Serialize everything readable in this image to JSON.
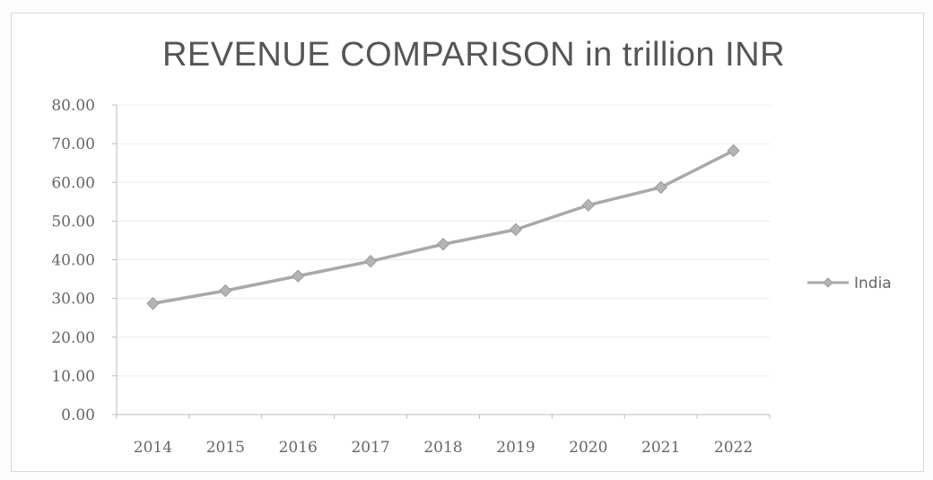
{
  "chart_data": {
    "type": "line",
    "title": "REVENUE COMPARISON in trillion INR",
    "xlabel": "",
    "ylabel": "",
    "categories": [
      "2014",
      "2015",
      "2016",
      "2017",
      "2018",
      "2019",
      "2020",
      "2021",
      "2022"
    ],
    "series": [
      {
        "name": "India",
        "values": [
          28.7,
          32.0,
          35.8,
          39.6,
          44.0,
          47.8,
          54.1,
          58.7,
          68.2
        ],
        "color": "#a9a9a9",
        "marker": "diamond"
      }
    ],
    "ylim": [
      0,
      80
    ],
    "yticks": [
      "0.00",
      "10.00",
      "20.00",
      "30.00",
      "40.00",
      "50.00",
      "60.00",
      "70.00",
      "80.00"
    ],
    "grid": true,
    "legend": "right"
  }
}
